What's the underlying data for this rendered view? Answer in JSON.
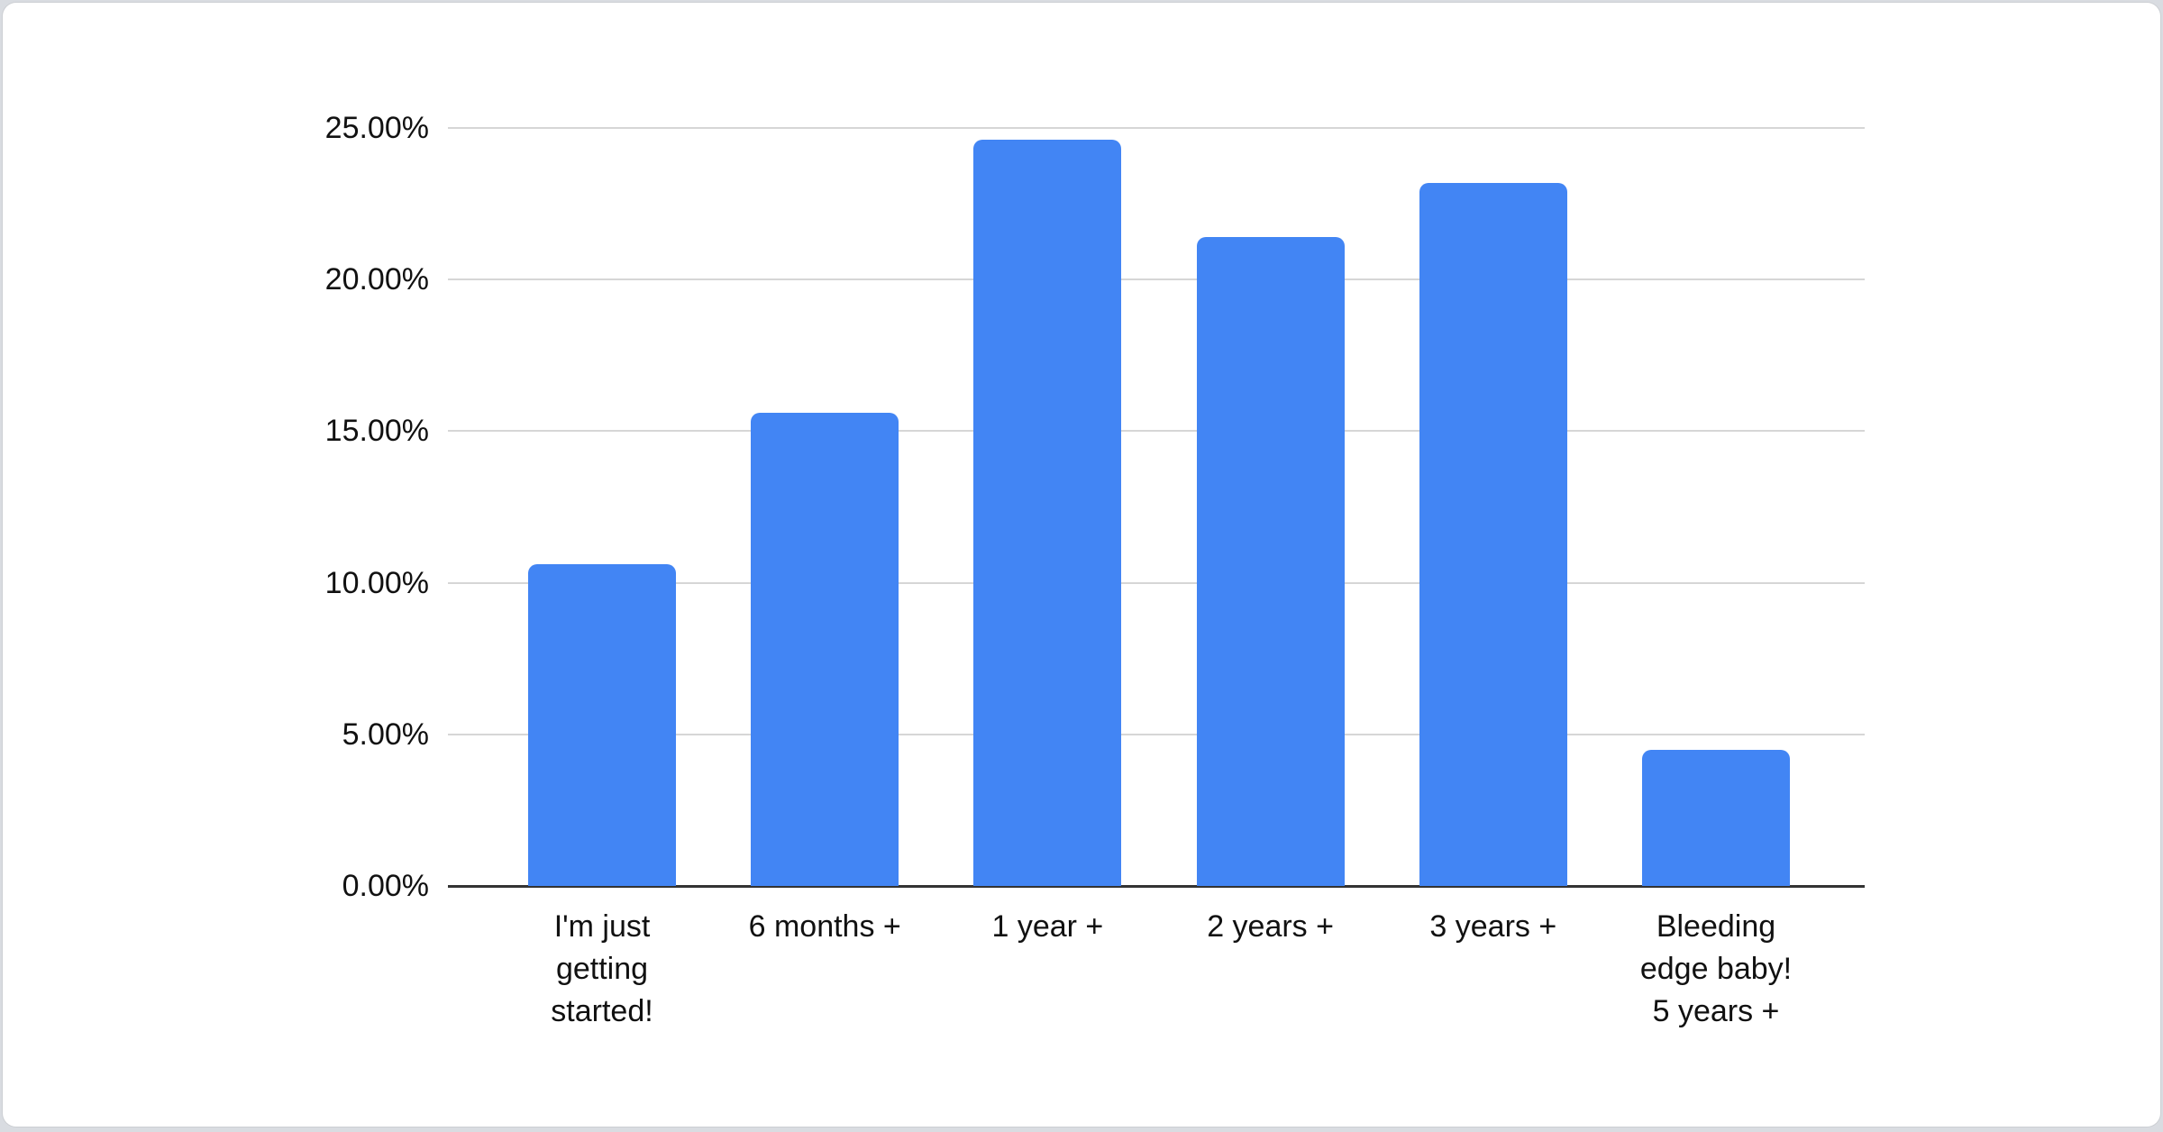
{
  "page": {
    "background_color": "#d9dce1",
    "card_background_color": "#ffffff"
  },
  "chart_data": {
    "type": "bar",
    "title": "",
    "xlabel": "",
    "ylabel": "",
    "categories": [
      "I'm just getting started!",
      "6 months +",
      "1 year +",
      "2 years +",
      "3 years +",
      "Bleeding edge baby! 5 years +"
    ],
    "category_labels_display": [
      "I'm just\ngetting\nstarted!",
      "6 months +",
      "1 year +",
      "2 years +",
      "3 years +",
      "Bleeding\nedge baby!\n5 years +"
    ],
    "values": [
      10.6,
      15.6,
      24.6,
      21.4,
      23.2,
      4.5
    ],
    "unit": "%",
    "ylim": [
      0,
      25
    ],
    "y_ticks": [
      {
        "value": 25,
        "label": "25.00%"
      },
      {
        "value": 20,
        "label": "20.00%"
      },
      {
        "value": 15,
        "label": "15.00%"
      },
      {
        "value": 10,
        "label": "10.00%"
      },
      {
        "value": 5,
        "label": "5.00%"
      },
      {
        "value": 0,
        "label": "0.00%"
      }
    ],
    "grid": true,
    "legend_position": "none",
    "bar_color": "#4285f4",
    "gridline_color": "#d6d6d6",
    "axis_line_color": "#333333",
    "text_color": "#111111"
  }
}
